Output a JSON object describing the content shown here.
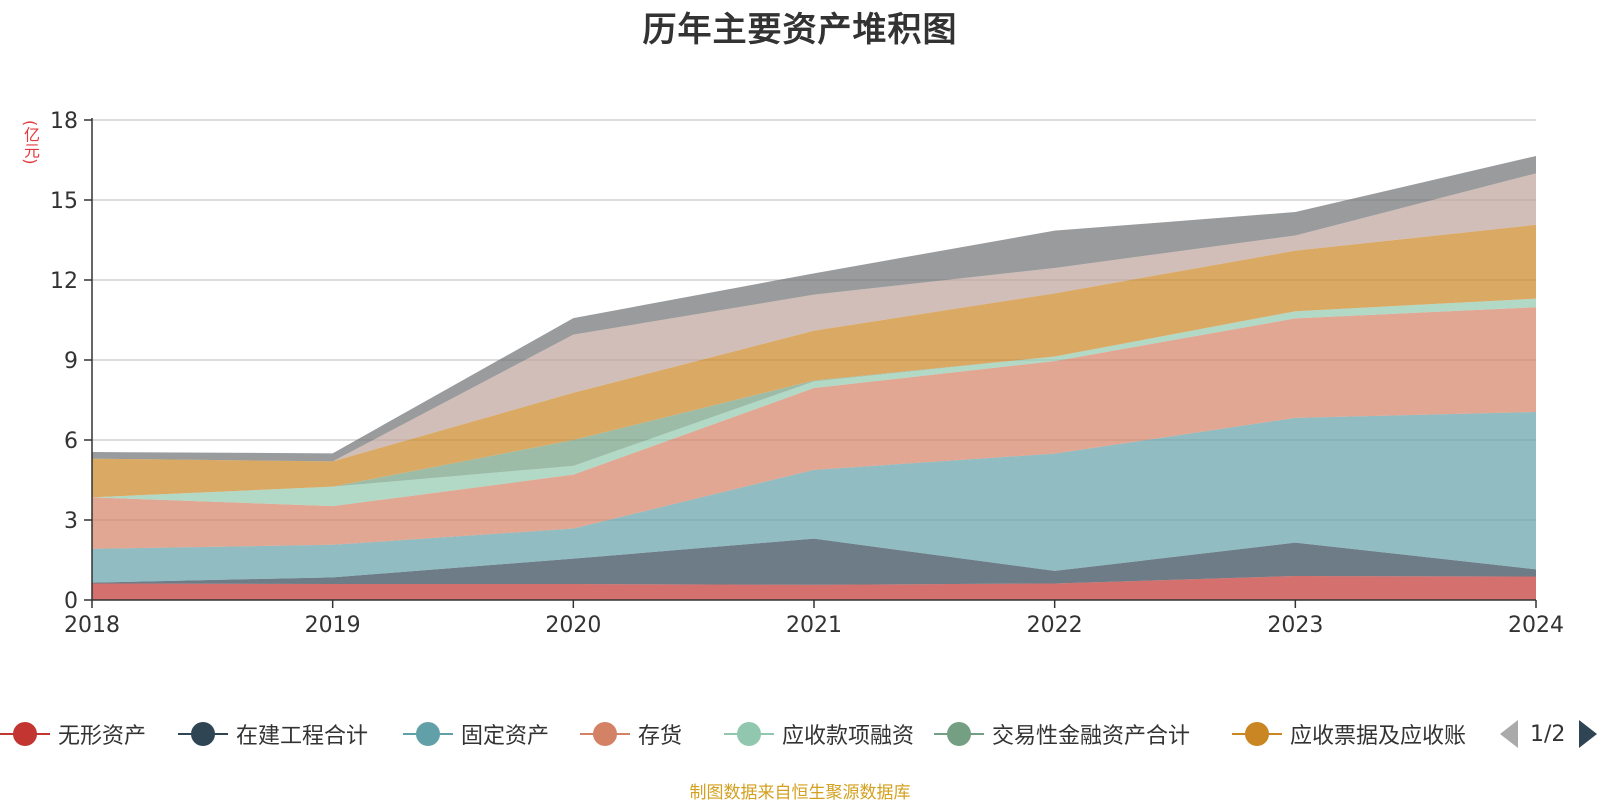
{
  "title": "历年主要资产堆积图",
  "unit_label": "(亿元)",
  "source_note": "制图数据来自恒生聚源数据库",
  "legend_pager": "1/2",
  "chart_data": {
    "type": "area",
    "stacked": true,
    "title": "历年主要资产堆积图",
    "ylabel": "(亿元)",
    "x": [
      "2018",
      "2019",
      "2020",
      "2021",
      "2022",
      "2023",
      "2024"
    ],
    "ylim": [
      0,
      18
    ],
    "yticks": [
      0,
      3,
      6,
      9,
      12,
      15,
      18
    ],
    "grid": true,
    "legend_position": "bottom",
    "series": [
      {
        "name": "无形资产",
        "color": "#c23531",
        "legend": true,
        "values": [
          0.62,
          0.6,
          0.6,
          0.57,
          0.62,
          0.9,
          0.88
        ]
      },
      {
        "name": "在建工程合计",
        "color": "#2f4554",
        "legend": true,
        "values": [
          0.03,
          0.25,
          0.95,
          1.73,
          0.47,
          1.25,
          0.27
        ]
      },
      {
        "name": "固定资产",
        "color": "#61a0a8",
        "legend": true,
        "values": [
          1.27,
          1.22,
          1.13,
          2.58,
          4.4,
          4.68,
          5.9
        ]
      },
      {
        "name": "存货",
        "color": "#d48265",
        "legend": true,
        "values": [
          1.93,
          1.45,
          2.02,
          3.07,
          3.47,
          3.73,
          3.93
        ]
      },
      {
        "name": "应收款项融资",
        "color": "#91c7ae",
        "legend": true,
        "values": [
          0.0,
          0.73,
          0.33,
          0.25,
          0.17,
          0.27,
          0.32
        ]
      },
      {
        "name": "交易性金融资产合计",
        "color": "#749f83",
        "legend": true,
        "values": [
          0.0,
          0.0,
          0.97,
          0.03,
          0.0,
          0.0,
          0.0
        ]
      },
      {
        "name": "应收票据及应收账",
        "color": "#ca8622",
        "legend": true,
        "values": [
          1.45,
          0.95,
          1.77,
          1.87,
          2.37,
          2.27,
          2.77
        ]
      },
      {
        "name": "",
        "color": "#bda29a",
        "legend": false,
        "values": [
          0.0,
          0.0,
          2.18,
          1.35,
          0.95,
          0.57,
          1.93
        ]
      },
      {
        "name": "",
        "color": "#6e7074",
        "legend": false,
        "values": [
          0.25,
          0.3,
          0.62,
          0.8,
          1.4,
          0.88,
          0.65
        ]
      }
    ]
  }
}
